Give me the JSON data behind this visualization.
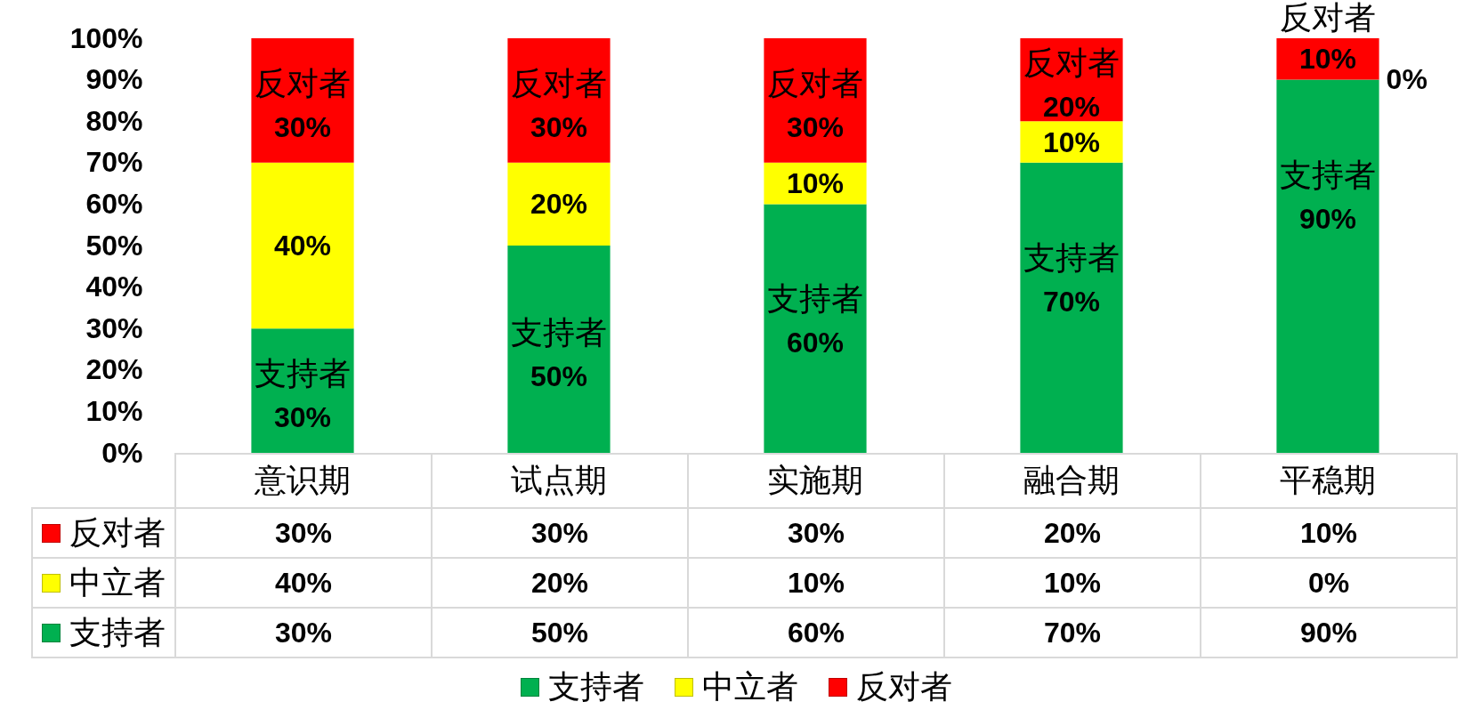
{
  "chart_data": {
    "type": "bar",
    "stacked": true,
    "categories": [
      "意识期",
      "试点期",
      "实施期",
      "融合期",
      "平稳期"
    ],
    "series": [
      {
        "name": "支持者",
        "color": "#00b050",
        "values": [
          30,
          50,
          60,
          70,
          90
        ],
        "value_labels": [
          "30%",
          "50%",
          "60%",
          "70%",
          "90%"
        ]
      },
      {
        "name": "中立者",
        "color": "#ffff00",
        "values": [
          40,
          20,
          10,
          10,
          0
        ],
        "value_labels": [
          "40%",
          "20%",
          "10%",
          "10%",
          "0%"
        ]
      },
      {
        "name": "反对者",
        "color": "#ff0000",
        "values": [
          30,
          30,
          30,
          20,
          10
        ],
        "value_labels": [
          "30%",
          "30%",
          "30%",
          "20%",
          "10%"
        ]
      }
    ],
    "annotations": [
      {
        "text": "支持者",
        "x": "意识期",
        "y": 30
      },
      {
        "text": "支持者",
        "x": "试点期",
        "y": 50
      },
      {
        "text": "支持者",
        "x": "实施期",
        "y": 60
      },
      {
        "text": "支持者",
        "x": "融合期",
        "y": 70
      },
      {
        "text": "支持者",
        "x": "平稳期",
        "y": 90
      },
      {
        "text": "反对者",
        "x": "意识期",
        "y": 100
      },
      {
        "text": "反对者",
        "x": "试点期",
        "y": 100
      },
      {
        "text": "反对者",
        "x": "实施期",
        "y": 100
      },
      {
        "text": "反对者",
        "x": "融合期",
        "y": 100
      },
      {
        "text": "反对者",
        "x": "平稳期",
        "y": 100
      }
    ],
    "ylim": [
      0,
      100
    ],
    "yticks": [
      {
        "value": 0,
        "label": "0%"
      },
      {
        "value": 10,
        "label": "10%"
      },
      {
        "value": 20,
        "label": "20%"
      },
      {
        "value": 30,
        "label": "30%"
      },
      {
        "value": 40,
        "label": "40%"
      },
      {
        "value": 50,
        "label": "50%"
      },
      {
        "value": 60,
        "label": "60%"
      },
      {
        "value": 70,
        "label": "70%"
      },
      {
        "value": 80,
        "label": "80%"
      },
      {
        "value": 90,
        "label": "90%"
      },
      {
        "value": 100,
        "label": "100%"
      }
    ],
    "legend": "bottom"
  }
}
